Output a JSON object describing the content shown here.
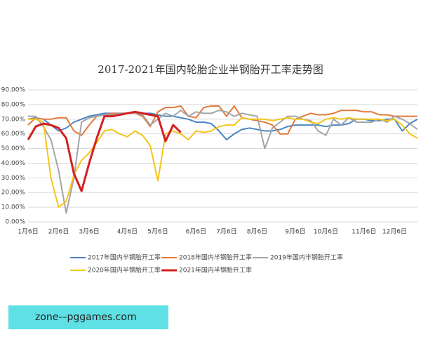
{
  "chart_data": {
    "type": "line",
    "title": "2017-2021年国内轮胎企业半钢胎开工率走势图",
    "categories": [
      "1月6日",
      null,
      null,
      null,
      "2月6日",
      null,
      null,
      null,
      "3月6日",
      null,
      null,
      null,
      null,
      "4月6日",
      null,
      null,
      null,
      "5月6日",
      null,
      null,
      null,
      null,
      "6月6日",
      null,
      null,
      null,
      "7月6日",
      null,
      null,
      null,
      "8月6日",
      null,
      null,
      null,
      null,
      "9月6日",
      null,
      null,
      null,
      "10月6日",
      null,
      null,
      null,
      null,
      "11月6日",
      null,
      null,
      null,
      "12月6日",
      null,
      null,
      null
    ],
    "ylim": [
      0,
      90
    ],
    "yticks": [
      {
        "value": 0,
        "label": "0.00%"
      },
      {
        "value": 10,
        "label": "10.00%"
      },
      {
        "value": 20,
        "label": "20.00%"
      },
      {
        "value": 30,
        "label": "30.00%"
      },
      {
        "value": 40,
        "label": "40.00%"
      },
      {
        "value": 50,
        "label": "50.00%"
      },
      {
        "value": 60,
        "label": "60.00%"
      },
      {
        "value": 70,
        "label": "70.00%"
      },
      {
        "value": 80,
        "label": "80.00%"
      },
      {
        "value": 90,
        "label": "90.00%"
      }
    ],
    "grid": true,
    "series": [
      {
        "name": "2017年国内半钢胎开工率",
        "color": "#4a86c5",
        "values": [
          70,
          71,
          70,
          66,
          62,
          64,
          68,
          70,
          72,
          73,
          74,
          74,
          74,
          74,
          74,
          74,
          74,
          73,
          72,
          72,
          71,
          70,
          68,
          68,
          67,
          62,
          56,
          60,
          63,
          64,
          63,
          62,
          62,
          63,
          65,
          66,
          66,
          66,
          66,
          65,
          66,
          66,
          67,
          70,
          70,
          69,
          69,
          70,
          70,
          62,
          67,
          70
        ]
      },
      {
        "name": "2018年国内半钢胎开工率",
        "color": "#e07b3a",
        "values": [
          66,
          71,
          70,
          70,
          71,
          71,
          62,
          59,
          66,
          72,
          73,
          74,
          74,
          74,
          74,
          72,
          65,
          75,
          78,
          78,
          79,
          72,
          71,
          78,
          79,
          79,
          72,
          79,
          71,
          70,
          69,
          68,
          66,
          60,
          60,
          70,
          72,
          74,
          73,
          73,
          74,
          76,
          76,
          76,
          75,
          75,
          73,
          73,
          72,
          72,
          72,
          72
        ]
      },
      {
        "name": "2019年国内半钢胎开工率",
        "color": "#a5a5a5",
        "values": [
          72,
          72,
          65,
          56,
          35,
          6,
          30,
          68,
          71,
          72,
          73,
          73,
          74,
          74,
          74,
          73,
          66,
          70,
          74,
          72,
          76,
          72,
          75,
          74,
          74,
          76,
          75,
          72,
          74,
          73,
          72,
          50,
          64,
          68,
          72,
          72,
          70,
          69,
          62,
          59,
          70,
          66,
          71,
          68,
          68,
          68,
          70,
          68,
          72,
          70,
          67,
          63
        ]
      },
      {
        "name": "2020年国内半钢胎开工率",
        "color": "#f5c518",
        "values": [
          70,
          70,
          68,
          30,
          10,
          14,
          32,
          42,
          47,
          54,
          62,
          63,
          60,
          58,
          62,
          59,
          52,
          28,
          60,
          62,
          60,
          56,
          62,
          61,
          62,
          65,
          66,
          66,
          71,
          70,
          70,
          70,
          69,
          70,
          71,
          70,
          70,
          68,
          67,
          70,
          71,
          70,
          71,
          70,
          70,
          70,
          70,
          69,
          70,
          66,
          60,
          57
        ]
      },
      {
        "name": "2021年国内半钢胎开工率",
        "color": "#d42020",
        "width": 3,
        "values": [
          56,
          65,
          67,
          66,
          64,
          57,
          33,
          21,
          40,
          57,
          72,
          72,
          73,
          74,
          75,
          74,
          73,
          72,
          55,
          66,
          61,
          null,
          null,
          null,
          null,
          null,
          null,
          null,
          null,
          null,
          null,
          null,
          null,
          null,
          null,
          null,
          null,
          null,
          null,
          null,
          null,
          null,
          null,
          null,
          null,
          null,
          null,
          null,
          null,
          null,
          null,
          null
        ]
      }
    ]
  },
  "watermark": "zone-–pggames.com"
}
